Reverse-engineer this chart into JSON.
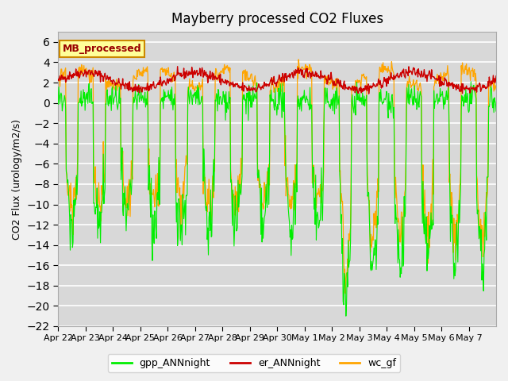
{
  "title": "Mayberry processed CO2 Fluxes",
  "ylabel": "CO2 Flux (urology/m2/s)",
  "ylim": [
    -22,
    7
  ],
  "yticks": [
    -22,
    -20,
    -18,
    -16,
    -14,
    -12,
    -10,
    -8,
    -6,
    -4,
    -2,
    0,
    2,
    4,
    6
  ],
  "fig_bg_color": "#f0f0f0",
  "plot_bg": "#d8d8d8",
  "legend_label": "MB_processed",
  "legend_box_facecolor": "#ffff99",
  "legend_box_edgecolor": "#cc8800",
  "legend_text_color": "#990000",
  "line_green": "#00ee00",
  "line_red": "#cc0000",
  "line_orange": "#ffa500",
  "n_days": 16,
  "series_labels": [
    "gpp_ANNnight",
    "er_ANNnight",
    "wc_gf"
  ],
  "xtick_labels": [
    "Apr 22",
    "Apr 23",
    "Apr 24",
    "Apr 25",
    "Apr 26",
    "Apr 27",
    "Apr 28",
    "Apr 29",
    "Apr 30",
    "May 1",
    "May 2",
    "May 3",
    "May 4",
    "May 5",
    "May 6",
    "May 7"
  ],
  "grid_color": "white",
  "grid_lw": 1.2,
  "title_fontsize": 12,
  "axis_fontsize": 9,
  "tick_fontsize": 8
}
